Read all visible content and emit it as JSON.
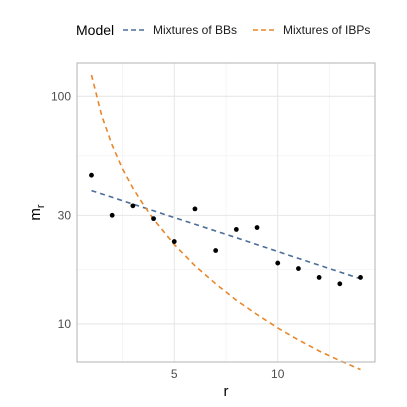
{
  "chart_data": {
    "type": "scatter",
    "xlabel": "r",
    "ylabel": "m",
    "ylabel_subscript": "r",
    "x_ticks": [
      5,
      10
    ],
    "y_ticks": [
      10,
      30,
      100
    ],
    "xlim": [
      0.3,
      14.7
    ],
    "ylim": [
      6.8,
      140
    ],
    "y_scale": "log",
    "grid": true,
    "legend": {
      "title": "Model",
      "position": "top",
      "entries": [
        {
          "label": "Mixtures of BBs",
          "color": "#4a6e99",
          "style": "dashed"
        },
        {
          "label": "Mixtures of IBPs",
          "color": "#e8862a",
          "style": "dashed"
        }
      ]
    },
    "points": {
      "x": [
        1,
        2,
        3,
        4,
        5,
        6,
        7,
        8,
        9,
        10,
        11,
        12,
        13,
        14
      ],
      "y": [
        45,
        30,
        33,
        29,
        23,
        32,
        21,
        26,
        26.5,
        18.5,
        17.5,
        16,
        15,
        16
      ]
    },
    "series": [
      {
        "name": "Mixtures of BBs",
        "color": "#4a6e99",
        "x": [
          1,
          2,
          3,
          4,
          5,
          6,
          7,
          8,
          9,
          10,
          11,
          12,
          13,
          14
        ],
        "y": [
          38.5,
          36.0,
          33.6,
          31.4,
          29.3,
          27.4,
          25.6,
          23.9,
          22.3,
          20.8,
          19.4,
          18.1,
          16.9,
          15.8
        ]
      },
      {
        "name": "Mixtures of IBPs",
        "color": "#e8862a",
        "x": [
          1,
          1.5,
          2,
          2.5,
          3,
          3.5,
          4,
          5,
          6,
          7,
          8,
          9,
          10,
          11,
          12,
          13,
          14
        ],
        "y": [
          124,
          82,
          61,
          48,
          39.5,
          33.5,
          28.8,
          22.3,
          18,
          15,
          12.7,
          11,
          9.6,
          8.5,
          7.6,
          6.9,
          6.3
        ]
      }
    ]
  }
}
